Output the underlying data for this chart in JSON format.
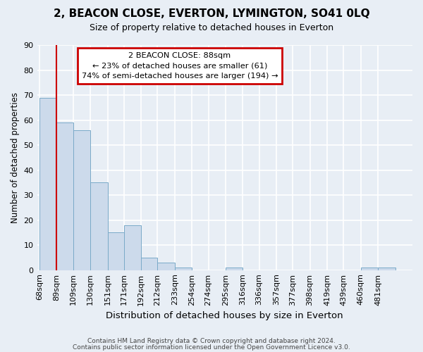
{
  "title": "2, BEACON CLOSE, EVERTON, LYMINGTON, SO41 0LQ",
  "subtitle": "Size of property relative to detached houses in Everton",
  "xlabel": "Distribution of detached houses by size in Everton",
  "ylabel": "Number of detached properties",
  "bin_labels": [
    "68sqm",
    "89sqm",
    "109sqm",
    "130sqm",
    "151sqm",
    "171sqm",
    "192sqm",
    "212sqm",
    "233sqm",
    "254sqm",
    "274sqm",
    "295sqm",
    "316sqm",
    "336sqm",
    "357sqm",
    "377sqm",
    "398sqm",
    "419sqm",
    "439sqm",
    "460sqm",
    "481sqm"
  ],
  "bin_edges": [
    68,
    89,
    109,
    130,
    151,
    171,
    192,
    212,
    233,
    254,
    274,
    295,
    316,
    336,
    357,
    377,
    398,
    419,
    439,
    460,
    481,
    502
  ],
  "heights": [
    69,
    59,
    56,
    35,
    15,
    18,
    5,
    3,
    1,
    0,
    0,
    1,
    0,
    0,
    0,
    0,
    0,
    0,
    0,
    1,
    1
  ],
  "bar_color": "#ccdaeb",
  "bar_edgecolor": "#7aaac8",
  "redline_x": 89,
  "annotation_title": "2 BEACON CLOSE: 88sqm",
  "annotation_line1": "← 23% of detached houses are smaller (61)",
  "annotation_line2": "74% of semi-detached houses are larger (194) →",
  "annotation_box_color": "white",
  "annotation_box_edgecolor": "#cc0000",
  "redline_color": "#cc0000",
  "ylim": [
    0,
    90
  ],
  "yticks": [
    0,
    10,
    20,
    30,
    40,
    50,
    60,
    70,
    80,
    90
  ],
  "footnote1": "Contains HM Land Registry data © Crown copyright and database right 2024.",
  "footnote2": "Contains public sector information licensed under the Open Government Licence v3.0.",
  "background_color": "#e8eef5",
  "plot_bg_color": "#e8eef5",
  "grid_color": "white"
}
